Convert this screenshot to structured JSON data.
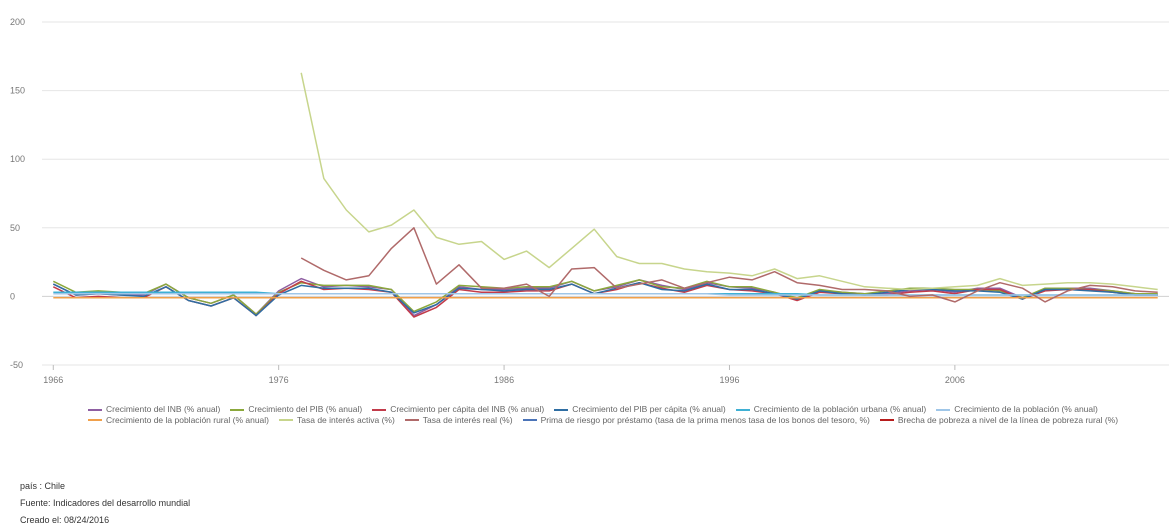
{
  "chart_data": {
    "type": "line",
    "title": "",
    "xlabel": "",
    "ylabel": "",
    "xlim": [
      1965.5,
      2015.5
    ],
    "ylim": [
      -50,
      200
    ],
    "yticks": [
      -50,
      0,
      50,
      100,
      150,
      200
    ],
    "xticks": [
      1966,
      1976,
      1986,
      1996,
      2006
    ],
    "grid": true,
    "legend_position": "bottom",
    "x": [
      1966,
      1967,
      1968,
      1969,
      1970,
      1971,
      1972,
      1973,
      1974,
      1975,
      1976,
      1977,
      1978,
      1979,
      1980,
      1981,
      1982,
      1983,
      1984,
      1985,
      1986,
      1987,
      1988,
      1989,
      1990,
      1991,
      1992,
      1993,
      1994,
      1995,
      1996,
      1997,
      1998,
      1999,
      2000,
      2001,
      2002,
      2003,
      2004,
      2005,
      2006,
      2007,
      2008,
      2009,
      2010,
      2011,
      2012,
      2013,
      2014,
      2015
    ],
    "series": [
      {
        "name": "Crecimiento del INB (% anual)",
        "color": "#8e5ea2",
        "values": [
          9,
          1,
          2,
          1,
          1,
          9,
          -1,
          -5,
          1,
          -13,
          4,
          13,
          7,
          8,
          7,
          5,
          -14,
          -6,
          7,
          5,
          5,
          6,
          6,
          11,
          4,
          7,
          12,
          8,
          5,
          10,
          7,
          6,
          3,
          -2,
          4,
          3,
          2,
          2,
          4,
          5,
          3,
          6,
          6,
          -1,
          5,
          6,
          6,
          4,
          2,
          2
        ]
      },
      {
        "name": "Crecimiento del PIB (% anual)",
        "color": "#8ba83c",
        "values": [
          11,
          3,
          4,
          3,
          2,
          9,
          -1,
          -5,
          1,
          -13,
          3,
          10,
          8,
          8,
          8,
          5,
          -11,
          -4,
          8,
          7,
          6,
          7,
          7,
          11,
          4,
          8,
          12,
          7,
          6,
          11,
          7,
          7,
          3,
          -1,
          5,
          3,
          2,
          4,
          6,
          6,
          5,
          5,
          4,
          -1,
          6,
          6,
          5,
          4,
          2,
          2
        ]
      },
      {
        "name": "Crecimiento per cápita del INB (% anual)",
        "color": "#c23b4a",
        "values": [
          7,
          -1,
          0,
          -1,
          -1,
          7,
          -3,
          -7,
          -1,
          -14,
          2,
          11,
          5,
          6,
          5,
          3,
          -15,
          -8,
          5,
          3,
          3,
          4,
          4,
          9,
          2,
          5,
          10,
          6,
          3,
          8,
          5,
          4,
          2,
          -3,
          3,
          2,
          1,
          1,
          3,
          4,
          2,
          5,
          5,
          -2,
          4,
          5,
          5,
          3,
          1,
          1
        ]
      },
      {
        "name": "Crecimiento del PIB per cápita (% anual)",
        "color": "#2f6ea3",
        "values": [
          9,
          1,
          2,
          1,
          0,
          7,
          -3,
          -7,
          -1,
          -14,
          1,
          8,
          6,
          6,
          6,
          3,
          -12,
          -6,
          6,
          5,
          4,
          5,
          5,
          9,
          2,
          6,
          10,
          5,
          4,
          9,
          5,
          5,
          2,
          -2,
          4,
          2,
          1,
          3,
          5,
          5,
          4,
          4,
          3,
          -2,
          5,
          5,
          4,
          3,
          1,
          1
        ]
      },
      {
        "name": "Crecimiento de la población urbana (% anual)",
        "color": "#3fb0d4",
        "values": [
          3,
          3,
          3,
          3,
          3,
          3,
          3,
          3,
          3,
          3,
          2,
          2,
          2,
          2,
          2,
          2,
          2,
          2,
          2,
          2,
          2,
          2,
          2,
          2,
          2,
          2,
          2,
          2,
          2,
          2,
          2,
          2,
          2,
          2,
          1,
          1,
          1,
          1,
          1,
          1,
          1,
          1,
          1,
          1,
          1,
          1,
          1,
          1,
          1,
          1
        ]
      },
      {
        "name": "Crecimiento de la población (% anual)",
        "color": "#9fc6e8",
        "values": [
          2,
          2,
          2,
          2,
          2,
          2,
          2,
          2,
          2,
          2,
          2,
          2,
          2,
          2,
          2,
          2,
          2,
          2,
          2,
          2,
          2,
          2,
          2,
          2,
          2,
          2,
          2,
          2,
          2,
          2,
          1,
          1,
          1,
          1,
          1,
          1,
          1,
          1,
          1,
          1,
          1,
          1,
          1,
          1,
          1,
          1,
          1,
          1,
          1,
          1
        ]
      },
      {
        "name": "Crecimiento de la población rural (% anual)",
        "color": "#f0a04b",
        "values": [
          -1,
          -1,
          -1,
          -1,
          -1,
          -1,
          -1,
          -1,
          -1,
          -1,
          -1,
          -1,
          -1,
          -1,
          -1,
          -1,
          -1,
          -1,
          -1,
          -1,
          -1,
          -1,
          -1,
          -1,
          -1,
          -1,
          -1,
          -1,
          -1,
          -1,
          -1,
          -1,
          -1,
          -1,
          -1,
          -1,
          -1,
          -1,
          -1,
          -1,
          -1,
          -1,
          -1,
          -1,
          -1,
          -1,
          -1,
          -1,
          -1,
          -1
        ]
      },
      {
        "name": "Tasa de interés activa (%)",
        "color": "#c7d58c",
        "values": [
          null,
          null,
          null,
          null,
          null,
          null,
          null,
          null,
          null,
          null,
          null,
          163,
          86,
          63,
          47,
          52,
          63,
          43,
          38,
          40,
          27,
          33,
          21,
          35,
          49,
          29,
          24,
          24,
          20,
          18,
          17,
          15,
          20,
          13,
          15,
          11,
          7,
          6,
          5,
          6,
          7,
          8,
          13,
          8,
          9,
          10,
          10,
          9,
          7,
          5
        ]
      },
      {
        "name": "Tasa de interés real (%)",
        "color": "#b06a6a",
        "values": [
          null,
          null,
          null,
          null,
          null,
          null,
          null,
          null,
          null,
          null,
          null,
          28,
          19,
          12,
          15,
          35,
          50,
          9,
          23,
          6,
          6,
          9,
          0,
          20,
          21,
          6,
          9,
          12,
          6,
          10,
          14,
          12,
          18,
          10,
          8,
          5,
          5,
          4,
          0,
          1,
          -4,
          4,
          10,
          6,
          -4,
          4,
          8,
          7,
          4,
          3
        ]
      },
      {
        "name": "Prima de riesgo por préstamo (tasa de la prima menos tasa de los bonos del tesoro, %)",
        "color": "#4b74b8",
        "values": [
          null,
          null,
          null,
          null,
          null,
          null,
          null,
          null,
          null,
          null,
          null,
          null,
          null,
          null,
          null,
          null,
          null,
          null,
          null,
          null,
          null,
          null,
          null,
          null,
          null,
          null,
          null,
          null,
          null,
          null,
          null,
          null,
          null,
          null,
          null,
          null,
          null,
          null,
          null,
          null,
          null,
          null,
          null,
          null,
          null,
          null,
          null,
          null,
          null,
          null
        ]
      },
      {
        "name": "Brecha de pobreza a nivel de la línea de pobreza rural (%)",
        "color": "#b71c1c",
        "values": [
          null,
          null,
          null,
          null,
          null,
          null,
          null,
          null,
          null,
          null,
          null,
          null,
          null,
          null,
          null,
          null,
          null,
          null,
          null,
          null,
          null,
          null,
          null,
          null,
          null,
          null,
          null,
          null,
          null,
          null,
          null,
          null,
          null,
          null,
          null,
          null,
          null,
          null,
          null,
          null,
          null,
          null,
          null,
          null,
          null,
          null,
          null,
          null,
          null,
          null
        ]
      }
    ]
  },
  "footer": {
    "country": "país : Chile",
    "source": "Fuente: Indicadores del desarrollo mundial",
    "created": "Creado el: 08/24/2016"
  }
}
